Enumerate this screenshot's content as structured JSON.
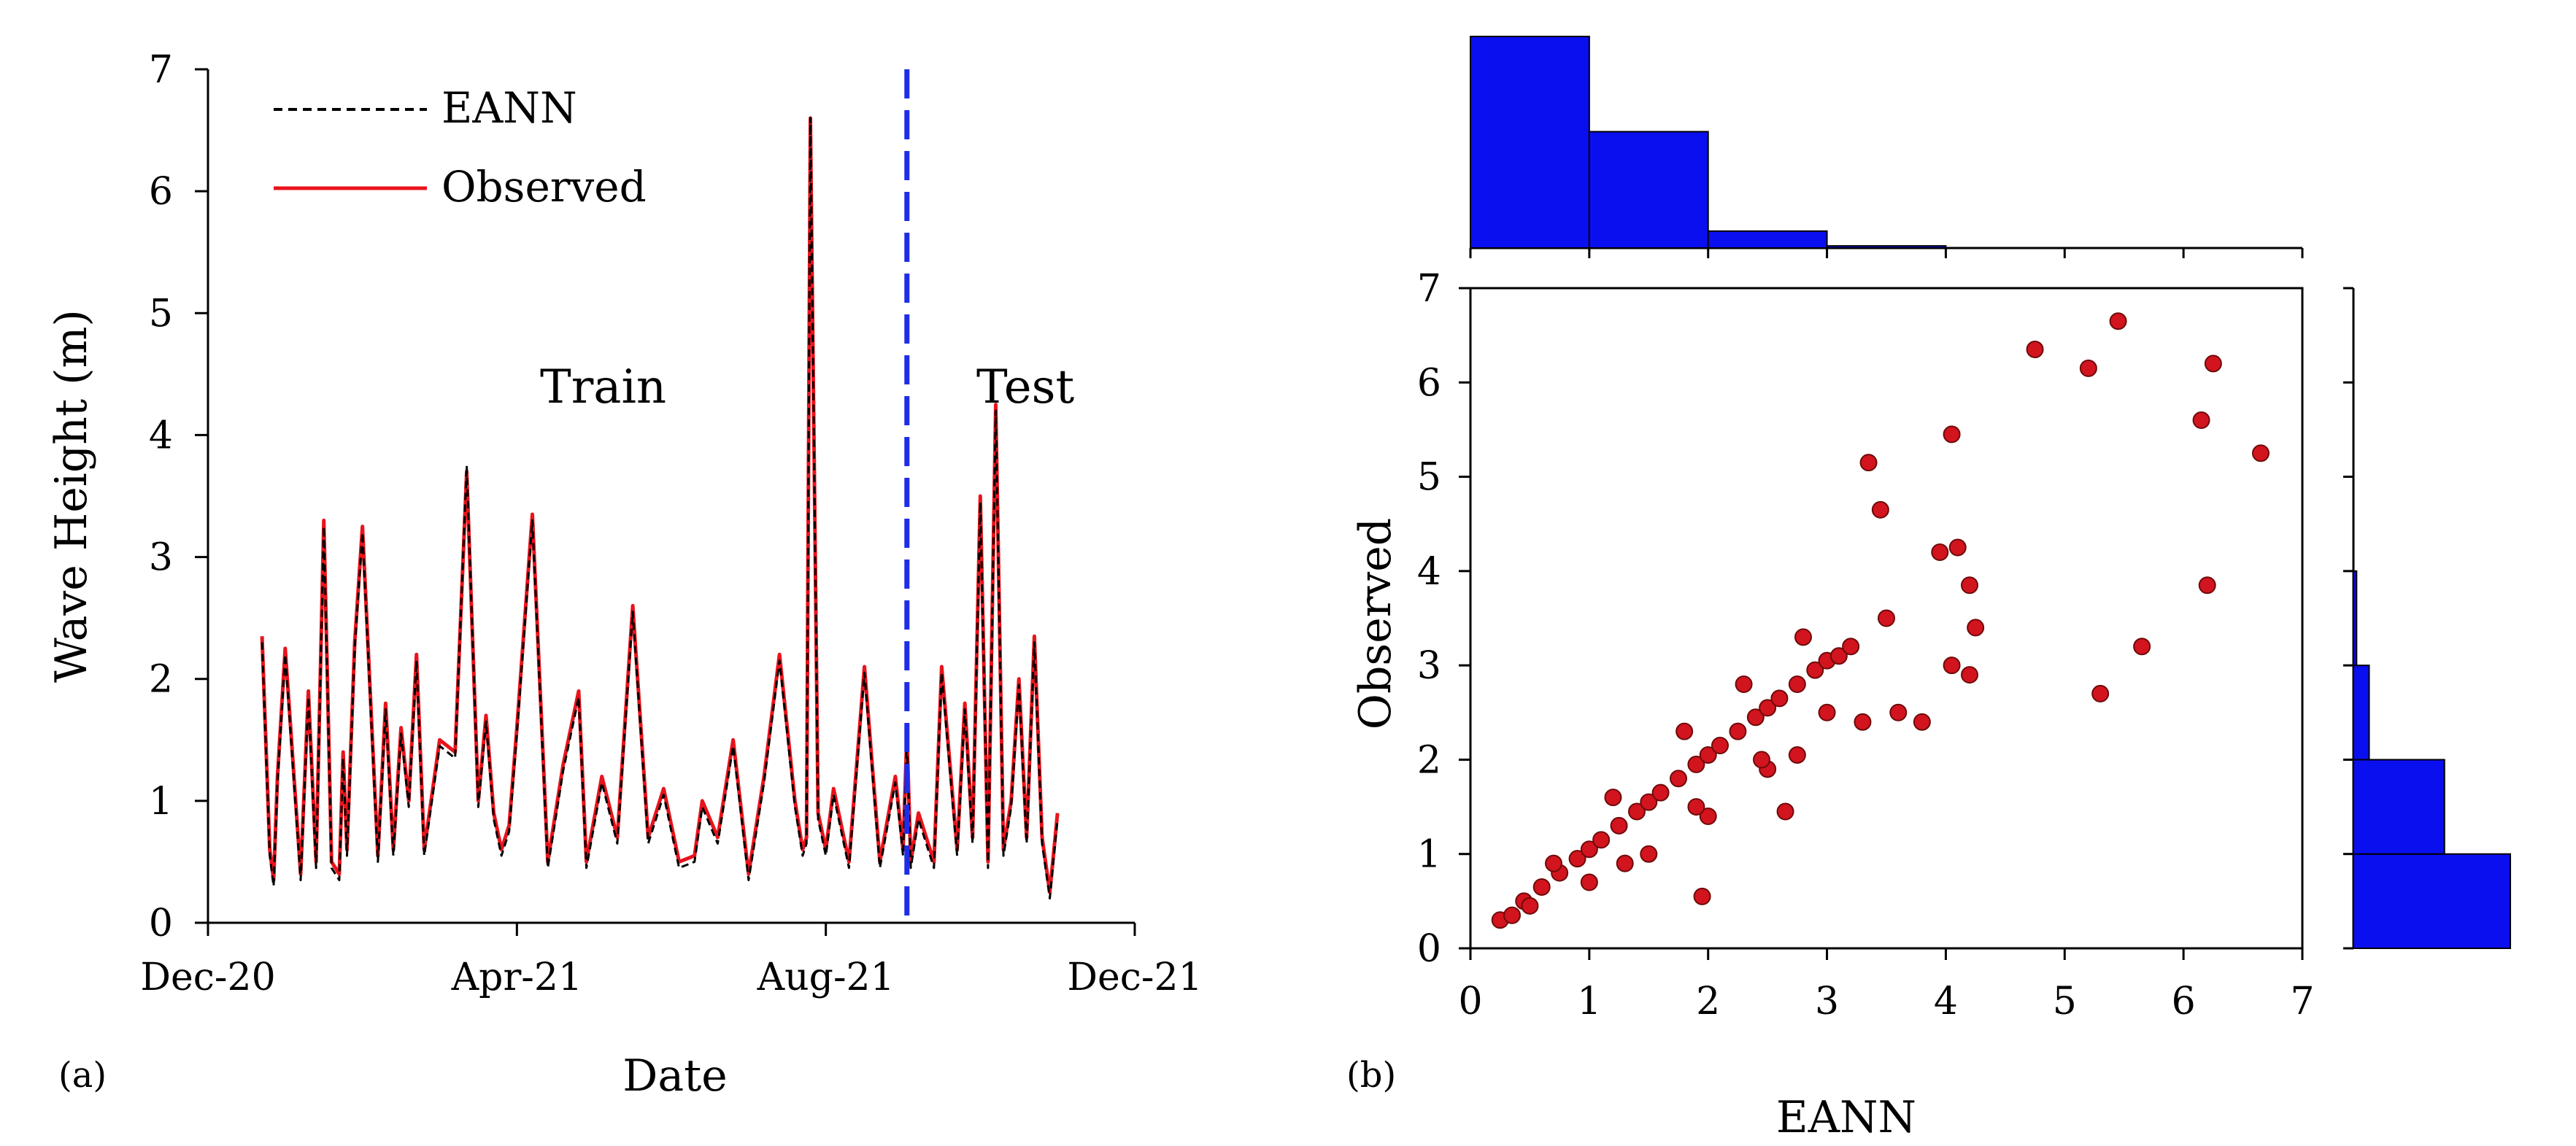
{
  "colors": {
    "observed": "#e8141c",
    "eann": "#000000",
    "split": "#1f2de6",
    "hist": "#0a0ff0",
    "scatter_fill": "#d2141e",
    "scatter_edge": "#6e0a0a"
  },
  "chart_data": [
    {
      "type": "line",
      "panel": "(a)",
      "title": "",
      "xlabel": "Date",
      "ylabel": "Wave Height (m)",
      "xlim": [
        0,
        12
      ],
      "ylim": [
        0,
        7
      ],
      "x_ticks": [
        {
          "value": 0,
          "label": "Dec-20"
        },
        {
          "value": 4,
          "label": "Apr-21"
        },
        {
          "value": 8,
          "label": "Aug-21"
        },
        {
          "value": 12,
          "label": "Dec-21"
        }
      ],
      "y_ticks": [
        {
          "value": 0,
          "label": "0"
        },
        {
          "value": 1,
          "label": "1"
        },
        {
          "value": 2,
          "label": "2"
        },
        {
          "value": 3,
          "label": "3"
        },
        {
          "value": 4,
          "label": "4"
        },
        {
          "value": 5,
          "label": "5"
        },
        {
          "value": 6,
          "label": "6"
        },
        {
          "value": 7,
          "label": "7"
        }
      ],
      "split_x": 9.05,
      "annotations": [
        "Train",
        "Test"
      ],
      "legend": {
        "position": "top-left",
        "entries": [
          "EANN",
          "Observed"
        ]
      },
      "series": [
        {
          "name": "Observed",
          "x": [
            0.7,
            0.8,
            0.85,
            0.9,
            1.0,
            1.2,
            1.3,
            1.4,
            1.5,
            1.6,
            1.7,
            1.75,
            1.8,
            1.9,
            2.0,
            2.2,
            2.3,
            2.4,
            2.5,
            2.6,
            2.7,
            2.8,
            3.0,
            3.2,
            3.35,
            3.5,
            3.6,
            3.7,
            3.8,
            3.9,
            4.0,
            4.2,
            4.4,
            4.6,
            4.8,
            4.9,
            5.1,
            5.3,
            5.5,
            5.7,
            5.9,
            6.1,
            6.3,
            6.4,
            6.6,
            6.8,
            7.0,
            7.2,
            7.4,
            7.6,
            7.7,
            7.75,
            7.8,
            7.9,
            8.0,
            8.1,
            8.3,
            8.5,
            8.7,
            8.9,
            9.0,
            9.05,
            9.1,
            9.2,
            9.4,
            9.5,
            9.7,
            9.8,
            9.9,
            10.0,
            10.1,
            10.2,
            10.3,
            10.4,
            10.5,
            10.6,
            10.7,
            10.8,
            10.9,
            11.0
          ],
          "values": [
            2.35,
            0.6,
            0.35,
            1.2,
            2.25,
            0.4,
            1.9,
            0.5,
            3.3,
            0.5,
            0.4,
            1.4,
            0.6,
            2.3,
            3.25,
            0.55,
            1.8,
            0.6,
            1.6,
            1.0,
            2.2,
            0.6,
            1.5,
            1.4,
            3.7,
            1.0,
            1.7,
            0.9,
            0.6,
            0.8,
            1.6,
            3.35,
            0.5,
            1.3,
            1.9,
            0.5,
            1.2,
            0.7,
            2.6,
            0.7,
            1.1,
            0.5,
            0.55,
            1.0,
            0.7,
            1.5,
            0.4,
            1.2,
            2.2,
            1.0,
            0.6,
            0.7,
            6.6,
            0.9,
            0.6,
            1.1,
            0.5,
            2.1,
            0.5,
            1.2,
            0.6,
            1.55,
            0.5,
            0.9,
            0.5,
            2.1,
            0.6,
            1.8,
            0.7,
            3.5,
            0.5,
            4.25,
            0.6,
            1.0,
            2.0,
            0.7,
            2.35,
            0.7,
            0.25,
            0.9
          ]
        },
        {
          "name": "EANN",
          "x": [
            0.7,
            0.8,
            0.85,
            0.9,
            1.0,
            1.2,
            1.3,
            1.4,
            1.5,
            1.6,
            1.7,
            1.75,
            1.8,
            1.9,
            2.0,
            2.2,
            2.3,
            2.4,
            2.5,
            2.6,
            2.7,
            2.8,
            3.0,
            3.2,
            3.35,
            3.5,
            3.6,
            3.7,
            3.8,
            3.9,
            4.0,
            4.2,
            4.4,
            4.6,
            4.8,
            4.9,
            5.1,
            5.3,
            5.5,
            5.7,
            5.9,
            6.1,
            6.3,
            6.4,
            6.6,
            6.8,
            7.0,
            7.2,
            7.4,
            7.6,
            7.7,
            7.75,
            7.8,
            7.9,
            8.0,
            8.1,
            8.3,
            8.5,
            8.7,
            8.9,
            9.0,
            9.05,
            9.1,
            9.2,
            9.4,
            9.5,
            9.7,
            9.8,
            9.9,
            10.0,
            10.1,
            10.2,
            10.3,
            10.4,
            10.5,
            10.6,
            10.7,
            10.8,
            10.9,
            11.0
          ],
          "values": [
            2.3,
            0.55,
            0.3,
            1.15,
            2.2,
            0.35,
            1.85,
            0.45,
            3.25,
            0.45,
            0.35,
            1.35,
            0.55,
            2.25,
            3.2,
            0.5,
            1.75,
            0.55,
            1.55,
            0.95,
            2.15,
            0.55,
            1.45,
            1.35,
            3.75,
            0.95,
            1.65,
            0.85,
            0.55,
            0.75,
            1.55,
            3.3,
            0.45,
            1.25,
            1.85,
            0.45,
            1.15,
            0.65,
            2.55,
            0.65,
            1.05,
            0.45,
            0.5,
            0.95,
            0.65,
            1.45,
            0.35,
            1.15,
            2.15,
            0.95,
            0.55,
            0.65,
            6.6,
            0.85,
            0.55,
            1.05,
            0.45,
            2.05,
            0.45,
            1.15,
            0.55,
            1.5,
            0.45,
            0.85,
            0.45,
            2.05,
            0.55,
            1.75,
            0.65,
            3.45,
            0.45,
            4.2,
            0.55,
            0.95,
            1.95,
            0.65,
            2.3,
            0.65,
            0.2,
            0.85
          ]
        }
      ]
    },
    {
      "type": "scatter",
      "panel": "(b)",
      "title": "",
      "xlabel": "EANN",
      "ylabel": "Observed",
      "xlim": [
        0,
        7
      ],
      "ylim": [
        0,
        7
      ],
      "x_ticks": [
        "0",
        "1",
        "2",
        "3",
        "4",
        "5",
        "6",
        "7"
      ],
      "y_ticks": [
        "0",
        "1",
        "2",
        "3",
        "4",
        "5",
        "6",
        "7"
      ],
      "series": [
        {
          "name": "Observed vs EANN",
          "x": [
            0.25,
            0.35,
            0.45,
            0.6,
            0.75,
            0.9,
            1.0,
            1.1,
            1.25,
            1.4,
            1.5,
            1.6,
            1.75,
            1.9,
            2.0,
            2.1,
            2.25,
            2.4,
            2.5,
            2.6,
            2.75,
            2.9,
            3.0,
            3.1,
            3.2,
            3.0,
            2.5,
            2.0,
            1.5,
            1.0,
            0.5,
            0.7,
            1.2,
            1.8,
            2.3,
            2.8,
            1.3,
            1.9,
            2.45,
            3.3,
            3.5,
            3.6,
            3.8,
            3.95,
            4.1,
            4.2,
            4.05,
            3.35,
            3.45,
            4.05,
            4.25,
            4.2,
            4.75,
            5.2,
            5.45,
            6.15,
            6.25,
            6.65,
            6.2,
            5.65,
            5.3,
            2.65,
            1.95,
            2.75
          ],
          "values": [
            0.3,
            0.35,
            0.5,
            0.65,
            0.8,
            0.95,
            1.05,
            1.15,
            1.3,
            1.45,
            1.55,
            1.65,
            1.8,
            1.95,
            2.05,
            2.15,
            2.3,
            2.45,
            2.55,
            2.65,
            2.8,
            2.95,
            3.05,
            3.1,
            3.2,
            2.5,
            1.9,
            1.4,
            1.0,
            0.7,
            0.45,
            0.9,
            1.6,
            2.3,
            2.8,
            3.3,
            0.9,
            1.5,
            2.0,
            2.4,
            3.5,
            2.5,
            2.4,
            4.2,
            4.25,
            3.85,
            3.0,
            5.15,
            4.65,
            5.45,
            3.4,
            2.9,
            6.35,
            6.15,
            6.65,
            5.6,
            6.2,
            5.25,
            3.85,
            3.2,
            2.7,
            1.45,
            0.55,
            2.05
          ]
        }
      ],
      "hist_top": {
        "bins": [
          "0-1",
          "1-2",
          "2-3",
          "3-4",
          "4-5",
          "5-6",
          "6-7"
        ],
        "counts": [
          1,
          0.55,
          0.08,
          0.01,
          0,
          0,
          0
        ]
      },
      "hist_right": {
        "bins": [
          "0-1",
          "1-2",
          "2-3",
          "3-4",
          "4-5",
          "5-6",
          "6-7"
        ],
        "counts": [
          1,
          0.58,
          0.1,
          0.02,
          0,
          0,
          0
        ]
      }
    }
  ]
}
